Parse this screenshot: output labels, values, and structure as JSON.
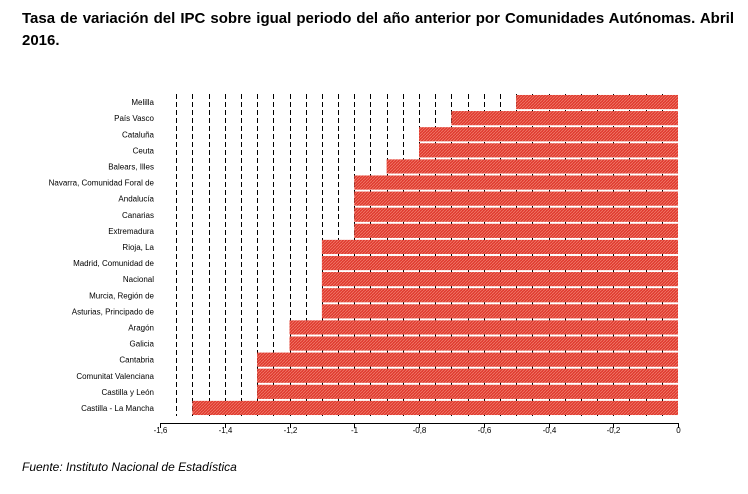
{
  "header": {
    "title": "Tasa de variación del IPC sobre igual periodo del año anterior por Comunidades Autónomas. Abril 2016."
  },
  "footer": {
    "source": "Fuente: Instituto Nacional de Estadística"
  },
  "colors": {
    "bar_fill": "#e03a2f",
    "bar_hatch": "#f07a6a",
    "grid": "#000000"
  },
  "chart_data": {
    "type": "bar",
    "orientation": "horizontal",
    "categories": [
      "Melilla",
      "País Vasco",
      "Cataluña",
      "Ceuta",
      "Balears, Illes",
      "Navarra, Comunidad Foral de",
      "Andalucía",
      "Canarias",
      "Extremadura",
      "Rioja, La",
      "Madrid, Comunidad de",
      "Nacional",
      "Murcia, Región de",
      "Asturias, Principado de",
      "Aragón",
      "Galicia",
      "Cantabria",
      "Comunitat Valenciana",
      "Castilla y León",
      "Castilla - La Mancha"
    ],
    "values": [
      -0.5,
      -0.7,
      -0.8,
      -0.8,
      -0.9,
      -1.0,
      -1.0,
      -1.0,
      -1.0,
      -1.1,
      -1.1,
      -1.1,
      -1.1,
      -1.1,
      -1.2,
      -1.2,
      -1.3,
      -1.3,
      -1.3,
      -1.5
    ],
    "xlim": [
      -1.6,
      0
    ],
    "xticks": [
      -1.6,
      -1.4,
      -1.2,
      -1,
      -0.8,
      -0.6,
      -0.4,
      -0.2,
      0
    ],
    "xtick_labels": [
      "-1,6",
      "-1,4",
      "-1,2",
      "-1",
      "-0,8",
      "-0,6",
      "-0,4",
      "-0,2",
      "0"
    ],
    "grid_step": 0.05,
    "grid": "dashed vertical",
    "xlabel": "",
    "ylabel": "",
    "legend": "none"
  }
}
